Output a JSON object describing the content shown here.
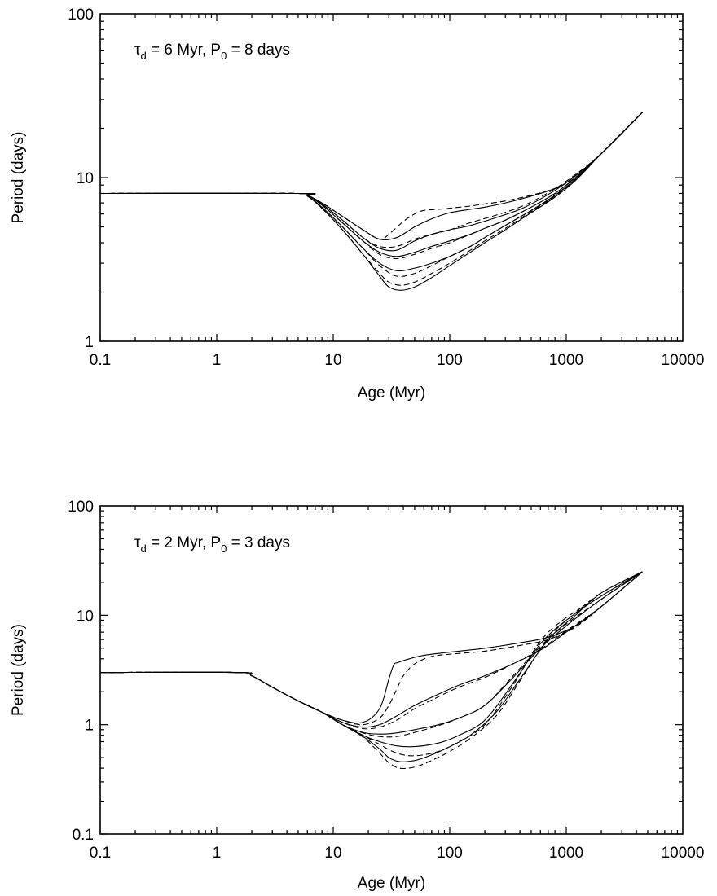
{
  "chart_data": [
    {
      "type": "line",
      "annotation": {
        "tau": "τ",
        "tau_sub": "d",
        "tau_rest": " = 6 Myr, P",
        "p_sub": "0",
        "p_rest": " = 8 days"
      },
      "xlabel": "Age (Myr)",
      "ylabel": "Period (days)",
      "xscale": "log",
      "yscale": "log",
      "xlim": [
        0.1,
        10000
      ],
      "ylim": [
        1,
        100
      ],
      "xticks": [
        "0.1",
        "1",
        "10",
        "100",
        "1000",
        "10000"
      ],
      "yticks": [
        "1",
        "10",
        "100"
      ],
      "grid": false,
      "series": [
        {
          "style": "solid",
          "x": [
            0.1,
            5,
            6,
            8,
            12,
            18,
            25,
            35,
            50,
            70,
            100,
            150,
            200,
            300,
            500,
            700,
            1000,
            2000,
            4500
          ],
          "y": [
            8,
            8,
            7.8,
            7,
            5.8,
            4.8,
            4.2,
            4.3,
            5.0,
            5.6,
            6.1,
            6.4,
            6.6,
            7.0,
            7.7,
            8.3,
            9.3,
            14,
            25
          ]
        },
        {
          "style": "dashed",
          "x": [
            0.1,
            5,
            6,
            8,
            12,
            18,
            25,
            30,
            40,
            50,
            60,
            80,
            100,
            150,
            200,
            300,
            500,
            800,
            1200,
            2000,
            4500
          ],
          "y": [
            8,
            8,
            7.8,
            7,
            5.8,
            4.8,
            4.2,
            4.5,
            5.4,
            6.0,
            6.3,
            6.4,
            6.5,
            6.7,
            6.9,
            7.2,
            7.8,
            8.6,
            10,
            14,
            25
          ]
        },
        {
          "style": "solid",
          "x": [
            0.1,
            5,
            6,
            8,
            12,
            18,
            25,
            35,
            50,
            70,
            100,
            150,
            250,
            400,
            600,
            1000,
            2000,
            4500
          ],
          "y": [
            8,
            8,
            7.8,
            6.9,
            5.5,
            4.3,
            3.7,
            3.6,
            4.1,
            4.5,
            4.8,
            5.1,
            5.7,
            6.4,
            7.4,
            9.3,
            14,
            25
          ]
        },
        {
          "style": "dashed",
          "x": [
            0.1,
            5,
            6,
            8,
            12,
            18,
            25,
            35,
            50,
            70,
            100,
            150,
            250,
            400,
            600,
            1000,
            2000,
            4500
          ],
          "y": [
            8,
            8,
            7.8,
            6.9,
            5.5,
            4.3,
            3.8,
            3.8,
            4.2,
            4.5,
            4.8,
            5.3,
            5.9,
            6.6,
            7.6,
            9.5,
            14,
            25
          ]
        },
        {
          "style": "solid",
          "x": [
            0.1,
            5,
            6,
            8,
            12,
            18,
            25,
            35,
            50,
            70,
            100,
            150,
            200,
            300,
            500,
            800,
            1200,
            2000,
            4500
          ],
          "y": [
            8,
            8,
            7.8,
            6.8,
            5.3,
            4.1,
            3.5,
            3.3,
            3.5,
            3.8,
            4.1,
            4.5,
            4.9,
            5.5,
            6.6,
            8.0,
            10,
            14,
            25
          ]
        },
        {
          "style": "dashed",
          "x": [
            0.1,
            5,
            6,
            8,
            12,
            18,
            25,
            35,
            50,
            70,
            100,
            150,
            200,
            300,
            500,
            800,
            1200,
            2000,
            4500
          ],
          "y": [
            8,
            8,
            7.8,
            6.8,
            5.3,
            4.1,
            3.4,
            3.2,
            3.4,
            3.7,
            4.0,
            4.5,
            4.9,
            5.5,
            6.6,
            8.0,
            10,
            14,
            25
          ]
        },
        {
          "style": "solid",
          "x": [
            0.1,
            5,
            6,
            8,
            12,
            18,
            25,
            35,
            50,
            70,
            100,
            150,
            200,
            300,
            500,
            800,
            1200,
            2000,
            4500
          ],
          "y": [
            8,
            8,
            7.7,
            6.6,
            5.0,
            3.7,
            3.0,
            2.7,
            2.8,
            3.0,
            3.3,
            3.8,
            4.3,
            5.1,
            6.3,
            7.8,
            9.8,
            14,
            25
          ]
        },
        {
          "style": "dashed",
          "x": [
            0.1,
            5,
            6,
            8,
            12,
            18,
            25,
            35,
            50,
            70,
            100,
            150,
            200,
            300,
            500,
            800,
            1200,
            2000,
            4500
          ],
          "y": [
            8,
            8,
            7.7,
            6.6,
            5.0,
            3.7,
            2.9,
            2.5,
            2.6,
            2.9,
            3.3,
            3.8,
            4.3,
            5.1,
            6.3,
            7.8,
            9.8,
            14,
            25
          ]
        },
        {
          "style": "solid",
          "x": [
            0.1,
            5,
            6,
            8,
            12,
            18,
            25,
            30,
            38,
            50,
            70,
            100,
            150,
            200,
            300,
            500,
            800,
            1200,
            2000,
            4500
          ],
          "y": [
            8,
            8,
            7.7,
            6.5,
            4.8,
            3.4,
            2.5,
            2.15,
            2.05,
            2.15,
            2.45,
            2.9,
            3.5,
            4.0,
            4.8,
            6.1,
            7.6,
            9.6,
            14,
            25
          ]
        },
        {
          "style": "dashed",
          "x": [
            0.1,
            5,
            6,
            8,
            12,
            18,
            25,
            30,
            38,
            50,
            70,
            100,
            150,
            200,
            300,
            500,
            800,
            1200,
            2000,
            4500
          ],
          "y": [
            8,
            8,
            7.7,
            6.5,
            4.8,
            3.4,
            2.6,
            2.3,
            2.2,
            2.3,
            2.6,
            3.0,
            3.6,
            4.1,
            4.9,
            6.2,
            7.7,
            9.7,
            14,
            25
          ]
        }
      ]
    },
    {
      "type": "line",
      "annotation": {
        "tau": "τ",
        "tau_sub": "d",
        "tau_rest": " = 2 Myr, P",
        "p_sub": "0",
        "p_rest": " = 3 days"
      },
      "xlabel": "Age (Myr)",
      "ylabel": "Period (days)",
      "xscale": "log",
      "yscale": "log",
      "xlim": [
        0.1,
        10000
      ],
      "ylim": [
        0.1,
        100
      ],
      "xticks": [
        "0.1",
        "1",
        "10",
        "100",
        "1000",
        "10000"
      ],
      "yticks": [
        "0.1",
        "1",
        "10",
        "100"
      ],
      "grid": false,
      "series": [
        {
          "style": "solid",
          "x": [
            0.1,
            1.5,
            2,
            3,
            5,
            8,
            12,
            18,
            25,
            30,
            33,
            36,
            45,
            60,
            100,
            200,
            400,
            700,
            1200,
            2000,
            4500
          ],
          "y": [
            3,
            3,
            2.8,
            2.2,
            1.65,
            1.3,
            1.1,
            1.05,
            1.4,
            2.6,
            3.5,
            3.7,
            4.0,
            4.3,
            4.6,
            5.0,
            5.6,
            6.3,
            8.0,
            12,
            25
          ]
        },
        {
          "style": "dashed",
          "x": [
            0.1,
            1.5,
            2,
            3,
            5,
            8,
            12,
            18,
            25,
            30,
            35,
            40,
            50,
            70,
            100,
            200,
            400,
            700,
            1200,
            2000,
            4500
          ],
          "y": [
            3,
            3,
            2.8,
            2.2,
            1.65,
            1.3,
            1.1,
            1.0,
            1.15,
            1.5,
            2.1,
            2.8,
            3.6,
            4.2,
            4.4,
            4.7,
            5.3,
            6.0,
            7.8,
            12,
            25
          ]
        },
        {
          "style": "solid",
          "x": [
            0.1,
            1.5,
            2,
            3,
            5,
            8,
            12,
            18,
            25,
            35,
            50,
            80,
            120,
            200,
            350,
            600,
            1000,
            2000,
            4500
          ],
          "y": [
            3,
            3,
            2.8,
            2.2,
            1.65,
            1.3,
            1.05,
            0.95,
            1.0,
            1.2,
            1.5,
            1.9,
            2.3,
            2.8,
            3.6,
            4.8,
            7.0,
            12,
            25
          ]
        },
        {
          "style": "dashed",
          "x": [
            0.1,
            1.5,
            2,
            3,
            5,
            8,
            12,
            18,
            25,
            35,
            50,
            80,
            120,
            200,
            350,
            600,
            1000,
            2000,
            4500
          ],
          "y": [
            3,
            3,
            2.8,
            2.2,
            1.65,
            1.3,
            1.05,
            0.92,
            0.95,
            1.1,
            1.4,
            1.8,
            2.2,
            2.7,
            3.6,
            4.9,
            7.2,
            12,
            25
          ]
        },
        {
          "style": "solid",
          "x": [
            0.1,
            1.5,
            2,
            3,
            5,
            8,
            12,
            18,
            25,
            35,
            50,
            80,
            120,
            200,
            350,
            600,
            1000,
            2000,
            4500
          ],
          "y": [
            3,
            3,
            2.8,
            2.2,
            1.65,
            1.3,
            1.0,
            0.85,
            0.82,
            0.84,
            0.9,
            1.0,
            1.15,
            1.5,
            2.7,
            5.0,
            8.0,
            14,
            25
          ]
        },
        {
          "style": "dashed",
          "x": [
            0.1,
            1.5,
            2,
            3,
            5,
            8,
            12,
            18,
            25,
            35,
            50,
            80,
            120,
            200,
            350,
            600,
            1000,
            2000,
            4500
          ],
          "y": [
            3,
            3,
            2.8,
            2.2,
            1.65,
            1.3,
            1.0,
            0.84,
            0.78,
            0.78,
            0.85,
            0.98,
            1.15,
            1.5,
            2.8,
            5.2,
            8.3,
            14,
            25
          ]
        },
        {
          "style": "solid",
          "x": [
            0.1,
            1.5,
            2,
            3,
            5,
            8,
            12,
            18,
            25,
            35,
            50,
            80,
            120,
            200,
            350,
            600,
            1000,
            2000,
            4500
          ],
          "y": [
            3,
            3,
            2.8,
            2.2,
            1.65,
            1.3,
            1.0,
            0.8,
            0.7,
            0.64,
            0.63,
            0.68,
            0.8,
            1.1,
            2.4,
            5.5,
            9.0,
            15,
            25
          ]
        },
        {
          "style": "dashed",
          "x": [
            0.1,
            1.5,
            2,
            3,
            5,
            8,
            12,
            18,
            25,
            35,
            50,
            80,
            120,
            200,
            350,
            600,
            1000,
            2000,
            4500
          ],
          "y": [
            3,
            3,
            2.8,
            2.2,
            1.65,
            1.3,
            1.0,
            0.8,
            0.66,
            0.55,
            0.52,
            0.57,
            0.7,
            1.0,
            2.3,
            5.8,
            9.5,
            15,
            25
          ]
        },
        {
          "style": "solid",
          "x": [
            0.1,
            1.5,
            2,
            3,
            5,
            8,
            12,
            18,
            25,
            30,
            37,
            50,
            70,
            100,
            150,
            250,
            400,
            700,
            1200,
            2000,
            4500
          ],
          "y": [
            3,
            3,
            2.8,
            2.2,
            1.65,
            1.3,
            1.0,
            0.78,
            0.6,
            0.5,
            0.46,
            0.47,
            0.53,
            0.63,
            0.8,
            1.3,
            2.6,
            6.0,
            10,
            16,
            25
          ]
        },
        {
          "style": "dashed",
          "x": [
            0.1,
            1.5,
            2,
            3,
            5,
            8,
            12,
            18,
            25,
            30,
            37,
            50,
            70,
            100,
            150,
            250,
            400,
            700,
            1200,
            2000,
            4500
          ],
          "y": [
            3,
            3,
            2.8,
            2.2,
            1.65,
            1.3,
            1.0,
            0.77,
            0.55,
            0.45,
            0.4,
            0.41,
            0.47,
            0.57,
            0.75,
            1.2,
            2.5,
            6.2,
            10.5,
            16,
            25
          ]
        }
      ]
    }
  ]
}
